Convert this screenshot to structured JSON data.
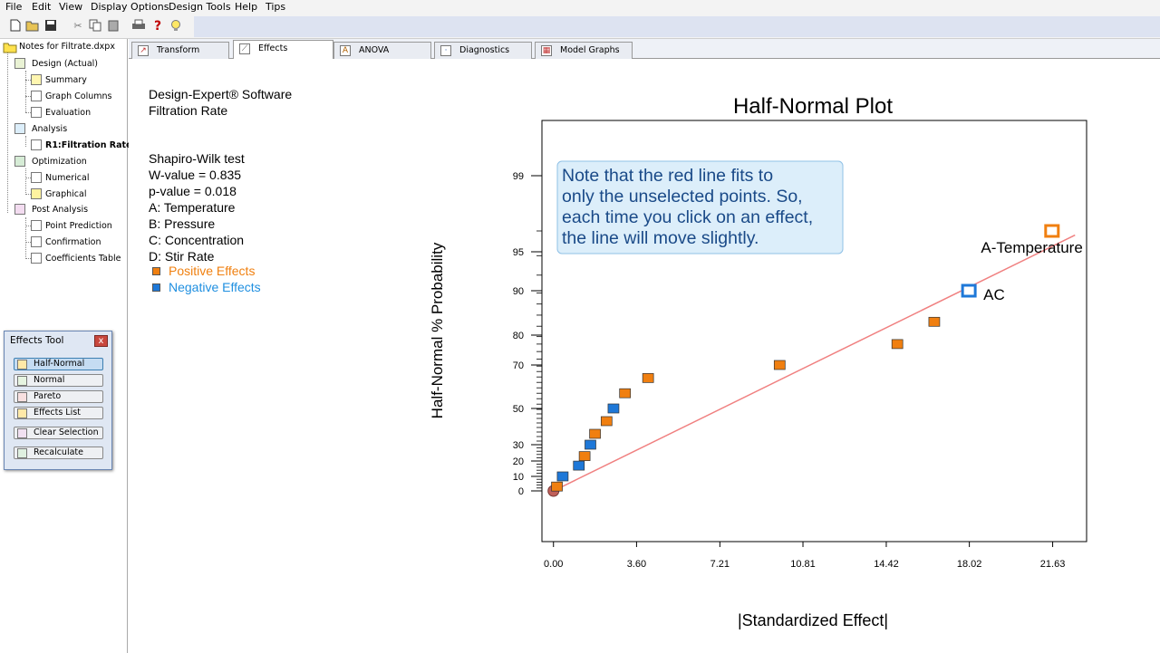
{
  "menu": [
    "File",
    "Edit",
    "View",
    "Display Options",
    "Design Tools",
    "Help",
    "Tips"
  ],
  "toolbar": {
    "help_icon": "?"
  },
  "tree": {
    "root": "Notes for Filtrate.dxpx",
    "design": "Design (Actual)",
    "summary": "Summary",
    "graph_columns": "Graph Columns",
    "evaluation": "Evaluation",
    "analysis": "Analysis",
    "r1": "R1:Filtration Rate",
    "optimization": "Optimization",
    "numerical": "Numerical",
    "graphical": "Graphical",
    "post_analysis": "Post Analysis",
    "point_prediction": "Point Prediction",
    "confirmation": "Confirmation",
    "coefficients_table": "Coefficients Table"
  },
  "tabs": [
    "Transform",
    "Effects",
    "ANOVA",
    "Diagnostics",
    "Model Graphs"
  ],
  "info": {
    "software": "Design-Expert® Software",
    "response": "Filtration Rate",
    "test": "Shapiro-Wilk test",
    "w_value": "W-value = 0.835",
    "p_value": "p-value = 0.018",
    "factor_a": "A: Temperature",
    "factor_b": "B: Pressure",
    "factor_c": "C: Concentration",
    "factor_d": "D: Stir Rate",
    "positive": "Positive Effects",
    "negative": "Negative Effects"
  },
  "effects_tool": {
    "title": "Effects Tool",
    "close": "x",
    "buttons": [
      "Half-Normal",
      "Normal",
      "Pareto",
      "Effects List",
      "Clear Selection",
      "Recalculate"
    ]
  },
  "colors": {
    "positive": "#f07f10",
    "negative": "#1e78d8",
    "fit_line": "#f08080",
    "positive_text": "#f08010",
    "negative_text": "#1f8fe0"
  },
  "chart_data": {
    "type": "scatter",
    "title": "Half-Normal Plot",
    "xlabel": "|Standardized Effect|",
    "ylabel": "Half-Normal % Probability",
    "xlim": [
      -0.5,
      23.1
    ],
    "x_ticks": [
      "0.00",
      "3.60",
      "7.21",
      "10.81",
      "14.42",
      "18.02",
      "21.63"
    ],
    "y_ticks": [
      "0",
      "10",
      "20",
      "30",
      "50",
      "70",
      "80",
      "90",
      "95",
      "99"
    ],
    "y_scale": "half-normal probability",
    "note": "Note that the red line fits to only the unselected points.  So, each time you click on an effect, the line will move slightly.",
    "fit_line": {
      "x": [
        0,
        22.6
      ],
      "y": [
        0,
        96.6
      ]
    },
    "points": [
      {
        "x": 0.0,
        "y": 0,
        "type": "origin"
      },
      {
        "x": 0.15,
        "y": 3,
        "type": "positive"
      },
      {
        "x": 0.4,
        "y": 10,
        "type": "negative"
      },
      {
        "x": 1.1,
        "y": 17,
        "type": "negative"
      },
      {
        "x": 1.35,
        "y": 23,
        "type": "positive"
      },
      {
        "x": 1.6,
        "y": 30,
        "type": "negative"
      },
      {
        "x": 1.8,
        "y": 36,
        "type": "positive"
      },
      {
        "x": 2.3,
        "y": 43,
        "type": "positive"
      },
      {
        "x": 2.6,
        "y": 50,
        "type": "negative"
      },
      {
        "x": 3.1,
        "y": 57,
        "type": "positive"
      },
      {
        "x": 4.1,
        "y": 64,
        "type": "positive"
      },
      {
        "x": 9.8,
        "y": 70,
        "type": "positive"
      },
      {
        "x": 14.9,
        "y": 77,
        "type": "positive"
      },
      {
        "x": 16.5,
        "y": 83,
        "type": "positive"
      },
      {
        "x": 18.0,
        "y": 90,
        "type": "negative",
        "selected": true,
        "label": "AC"
      },
      {
        "x": 21.6,
        "y": 97,
        "type": "positive",
        "selected": true,
        "label": "A-Temperature"
      }
    ]
  }
}
